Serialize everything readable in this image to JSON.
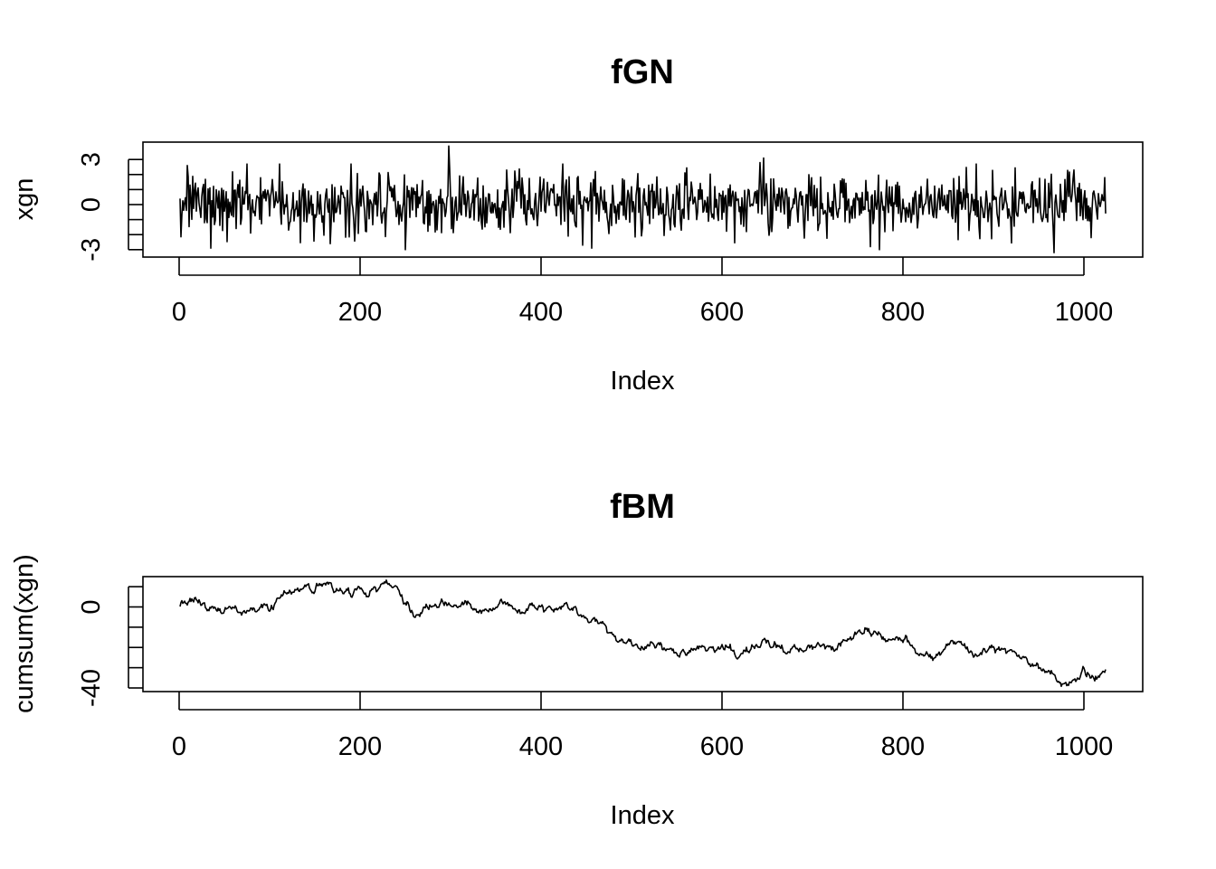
{
  "chart_data": [
    {
      "type": "line",
      "title": "fGN",
      "xlabel": "Index",
      "ylabel": "xgn",
      "xlim": [
        1,
        1024
      ],
      "ylim": [
        -3.2,
        3.9
      ],
      "x_ticks": [
        0,
        200,
        400,
        600,
        800,
        1000
      ],
      "y_ticks": [
        -3,
        -2,
        -1,
        0,
        1,
        2,
        3
      ],
      "y_tick_labels": [
        "-3",
        "",
        "",
        "0",
        "",
        "",
        "3"
      ],
      "grid": false,
      "series": [
        {
          "values": "generated: 1024 samples of fractional Gaussian noise (mean ~0, sd ~1), with spikes near index 298 (~3.9), 646 (~3.1), 967 (~-3.2), 250 (~-3.0), 35 (~-2.9)"
        }
      ]
    },
    {
      "type": "line",
      "title": "fBM",
      "xlabel": "Index",
      "ylabel": "cumsum(xgn)",
      "xlim": [
        1,
        1024
      ],
      "ylim": [
        -40,
        13
      ],
      "x_ticks": [
        0,
        200,
        400,
        600,
        800,
        1000
      ],
      "y_ticks": [
        -40,
        -30,
        -20,
        -10,
        0,
        10
      ],
      "y_tick_labels": [
        "-40",
        "",
        "",
        "",
        "0",
        ""
      ],
      "grid": false,
      "series": [
        {
          "anchors": [
            [
              1,
              0
            ],
            [
              15,
              4
            ],
            [
              40,
              -2
            ],
            [
              70,
              -1
            ],
            [
              100,
              0
            ],
            [
              120,
              7
            ],
            [
              140,
              8
            ],
            [
              160,
              11
            ],
            [
              185,
              6
            ],
            [
              200,
              8
            ],
            [
              228,
              11
            ],
            [
              240,
              8
            ],
            [
              260,
              -4
            ],
            [
              290,
              3
            ],
            [
              320,
              1
            ],
            [
              340,
              -2
            ],
            [
              355,
              3
            ],
            [
              380,
              -3
            ],
            [
              400,
              1
            ],
            [
              430,
              0
            ],
            [
              450,
              -6
            ],
            [
              480,
              -13
            ],
            [
              500,
              -18
            ],
            [
              530,
              -20
            ],
            [
              560,
              -22
            ],
            [
              600,
              -19
            ],
            [
              620,
              -23
            ],
            [
              650,
              -17
            ],
            [
              670,
              -22
            ],
            [
              700,
              -19
            ],
            [
              720,
              -22
            ],
            [
              760,
              -11
            ],
            [
              780,
              -16
            ],
            [
              800,
              -17
            ],
            [
              830,
              -25
            ],
            [
              860,
              -17
            ],
            [
              880,
              -23
            ],
            [
              910,
              -20
            ],
            [
              930,
              -23
            ],
            [
              950,
              -30
            ],
            [
              977,
              -40
            ],
            [
              990,
              -34
            ],
            [
              1000,
              -31
            ],
            [
              1012,
              -37
            ],
            [
              1024,
              -31
            ]
          ]
        }
      ]
    }
  ]
}
